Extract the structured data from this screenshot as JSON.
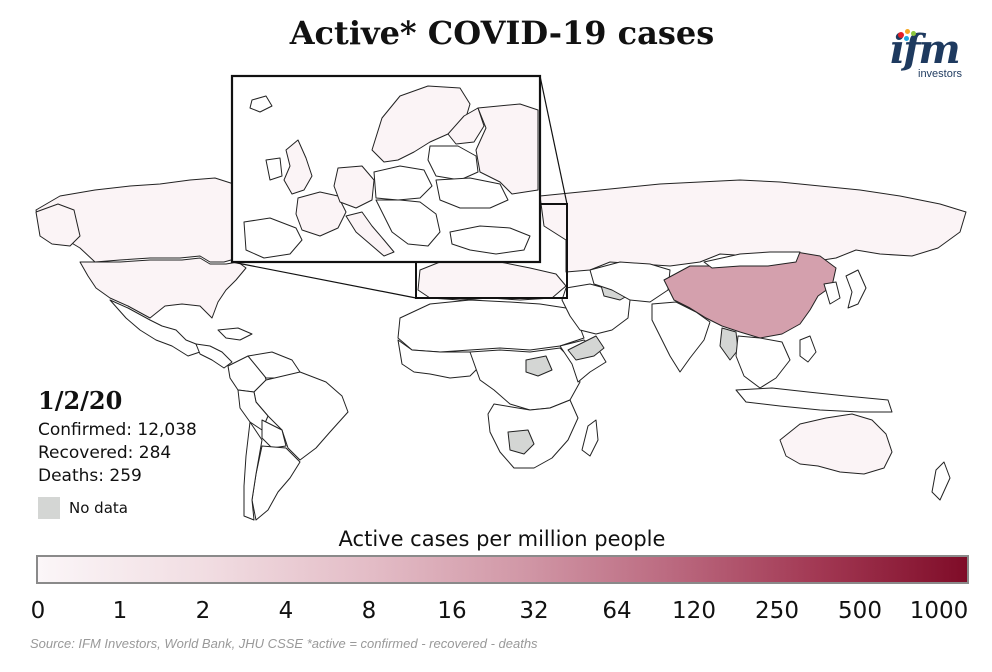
{
  "title": "Active* COVID-19 cases",
  "logo": {
    "mark": "ifm",
    "subtitle": "investors",
    "dot_colors": [
      "#e31f26",
      "#f7a823",
      "#8dc63f",
      "#1fa9e1"
    ]
  },
  "stats": {
    "date": "1/2/20",
    "confirmed": "Confirmed: 12,038",
    "recovered": "Recovered: 284",
    "deaths": "Deaths: 259"
  },
  "no_data_label": "No data",
  "legend": {
    "title": "Active cases per million people",
    "ticks": [
      "0",
      "1",
      "2",
      "4",
      "8",
      "16",
      "32",
      "64",
      "120",
      "250",
      "500",
      "1000"
    ]
  },
  "source": "Source: IFM Investors, World Bank, JHU CSSE    *active = confirmed - recovered - deaths",
  "colors": {
    "china": "#d4a0ad",
    "low_case": "#fbf4f6",
    "no_data": "#d4d6d4",
    "land": "#ffffff",
    "border": "#222222"
  }
}
